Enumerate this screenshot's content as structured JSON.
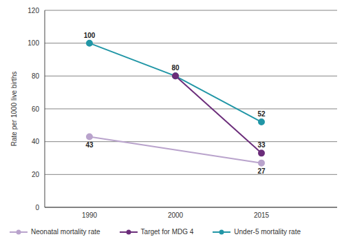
{
  "chart_data": {
    "type": "line",
    "categories": [
      "1990",
      "2000",
      "2015"
    ],
    "series": [
      {
        "name": "Under-5 mortality rate",
        "color": "#2196a6",
        "values": [
          100,
          80,
          52
        ],
        "marker": "circle"
      },
      {
        "name": "Target for MDG 4",
        "color": "#6b2d7a",
        "values": [
          null,
          80,
          33
        ],
        "marker": "circle"
      },
      {
        "name": "Neonatal mortality rate",
        "color": "#b9a3cc",
        "values": [
          43,
          null,
          27
        ],
        "marker": "circle"
      }
    ],
    "y_label": "Rate per 1000 live births",
    "ylim": [
      0,
      120
    ],
    "yticks": [
      0,
      20,
      40,
      60,
      80,
      100,
      120
    ],
    "grid": true,
    "data_labels": true,
    "legend": "bottom"
  }
}
